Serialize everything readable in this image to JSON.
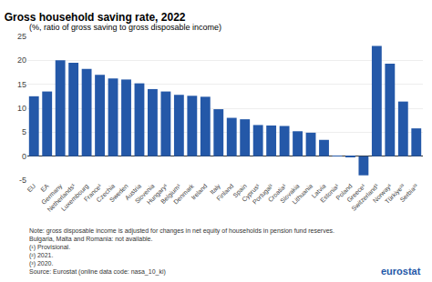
{
  "chart_data": {
    "type": "bar",
    "title": "Gross household saving rate, 2022",
    "subtitle": "(%, ratio of gross saving to gross disposable income)",
    "categories": [
      "EU",
      "EA",
      "Germany",
      "Netherlands¹",
      "Luxembourg",
      "France¹",
      "Czechia",
      "Sweden",
      "Austria",
      "Slovenia",
      "Hungary¹",
      "Belgium¹",
      "Denmark",
      "Ireland",
      "Italy",
      "Finland",
      "Spain",
      "Cyprus¹",
      "Portugal¹",
      "Croatia¹",
      "Slovakia",
      "Lithuania",
      "Latvia",
      "Estonia¹",
      "Poland",
      "Greece¹",
      "Switzerland¹",
      "Norway¹",
      "Türkiye²³",
      "Serbia²³"
    ],
    "values": [
      12.5,
      13.5,
      20.0,
      19.5,
      18.2,
      17.0,
      16.2,
      16.0,
      15.2,
      14.0,
      13.5,
      12.8,
      12.6,
      12.4,
      9.8,
      8.0,
      7.7,
      6.5,
      6.4,
      6.3,
      5.2,
      4.9,
      3.4,
      0.1,
      -0.2,
      -4.0,
      23.0,
      19.3,
      11.4,
      5.8
    ],
    "color": "#2458a8",
    "ylim": [
      -5,
      25
    ],
    "yticks": [
      -5,
      0,
      5,
      10,
      15,
      20,
      25
    ],
    "grid": true,
    "notes": [
      "Note: gross disposable income is adjusted for changes in net equity of households in pension fund reserves.",
      "Bulgaria, Malta and Romania: not available.",
      "(¹) Provisional.",
      "(²) 2021.",
      "(³) 2020.",
      "Source: Eurostat (online data code: nasa_10_ki)"
    ],
    "logo": "eurostat"
  }
}
